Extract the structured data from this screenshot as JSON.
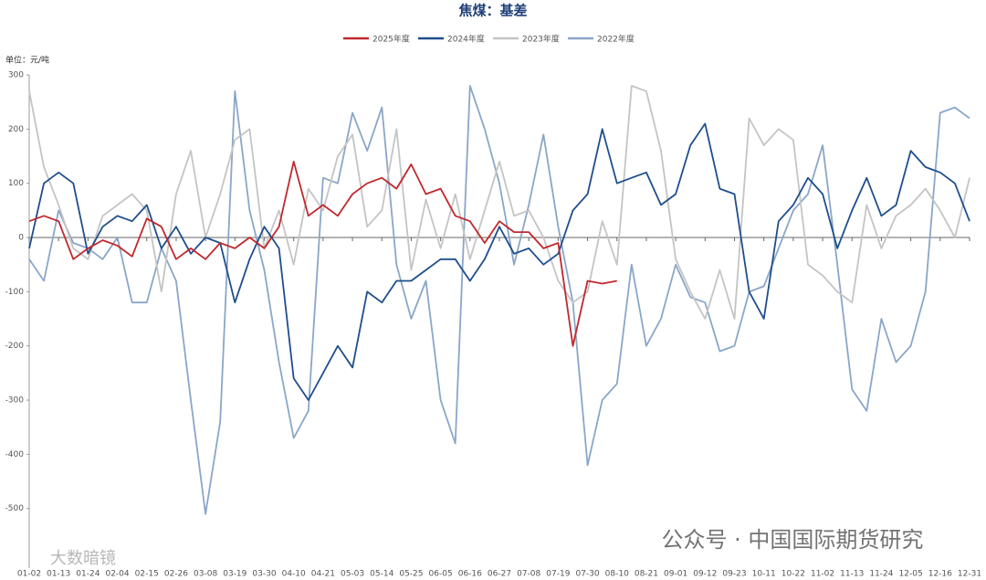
{
  "chart_data": {
    "type": "line",
    "title": "焦煤：基差",
    "y_label": "单位：元/吨",
    "watermark": "公众号 · 中国国际期货研究",
    "watermark2": "大数暗镜",
    "categories": [
      "01-02",
      null,
      "01-13",
      null,
      "01-24",
      null,
      "02-04",
      null,
      "02-15",
      null,
      "02-26",
      null,
      "03-08",
      null,
      "03-19",
      null,
      "03-30",
      null,
      "04-10",
      null,
      "04-21",
      null,
      "05-03",
      null,
      "05-14",
      null,
      "05-25",
      null,
      "06-05",
      null,
      "06-16",
      null,
      "06-27",
      null,
      "07-08",
      null,
      "07-19",
      null,
      "07-30",
      null,
      "08-10",
      null,
      "08-21",
      null,
      "09-01",
      null,
      "09-12",
      null,
      "09-23",
      null,
      "10-11",
      null,
      "10-22",
      null,
      "11-02",
      null,
      "11-13",
      null,
      "11-24",
      null,
      "12-05",
      null,
      "12-16",
      null,
      "12-31"
    ],
    "series": [
      {
        "name": "2025年度",
        "color": "#c0282d",
        "values": [
          30,
          40,
          30,
          -40,
          -20,
          -5,
          -15,
          -35,
          35,
          20,
          -40,
          -20,
          -40,
          -10,
          -20,
          0,
          -20,
          20,
          140,
          40,
          60,
          40,
          80,
          100,
          110,
          90,
          135,
          80,
          90,
          40,
          30,
          -10,
          30,
          10,
          10,
          -20,
          -10,
          -200,
          -80,
          -85,
          -80,
          null,
          null,
          null,
          null,
          null,
          null,
          null,
          null,
          null,
          null,
          null,
          null,
          null,
          null,
          null,
          null,
          null,
          null,
          null,
          null,
          null,
          null,
          null,
          null
        ]
      },
      {
        "name": "2024年度",
        "color": "#1f4e8c",
        "values": [
          -20,
          100,
          120,
          100,
          -30,
          20,
          40,
          30,
          60,
          -20,
          20,
          -30,
          0,
          -10,
          -120,
          -40,
          20,
          -20,
          -260,
          -300,
          -250,
          -200,
          -240,
          -100,
          -120,
          -80,
          -80,
          -60,
          -40,
          -40,
          -80,
          -40,
          20,
          -30,
          -20,
          -50,
          -30,
          50,
          80,
          200,
          100,
          110,
          120,
          60,
          80,
          170,
          210,
          90,
          80,
          -100,
          -150,
          30,
          60,
          110,
          80,
          -20,
          50,
          110,
          40,
          60,
          160,
          130,
          120,
          100,
          30
        ]
      },
      {
        "name": "2023年度",
        "color": "#c4c4c4",
        "values": [
          270,
          130,
          60,
          -20,
          -40,
          40,
          60,
          80,
          50,
          -100,
          80,
          160,
          0,
          80,
          180,
          200,
          -20,
          50,
          -50,
          90,
          50,
          150,
          190,
          20,
          50,
          200,
          -60,
          70,
          -20,
          80,
          -40,
          50,
          140,
          40,
          50,
          0,
          -80,
          -120,
          -100,
          30,
          -50,
          280,
          270,
          160,
          -40,
          -100,
          -150,
          -60,
          -150,
          220,
          170,
          200,
          180,
          -50,
          -70,
          -100,
          -120,
          60,
          -20,
          40,
          60,
          90,
          50,
          0,
          110
        ]
      },
      {
        "name": "2022年度",
        "color": "#8aa6c8",
        "values": [
          -40,
          -80,
          50,
          -10,
          -20,
          -40,
          0,
          -120,
          -120,
          -20,
          -80,
          -300,
          -510,
          -340,
          270,
          50,
          -60,
          -230,
          -370,
          -320,
          110,
          100,
          230,
          160,
          240,
          -50,
          -150,
          -80,
          -300,
          -380,
          280,
          200,
          100,
          -50,
          60,
          190,
          20,
          -120,
          -420,
          -300,
          -270,
          -50,
          -200,
          -150,
          -50,
          -110,
          -120,
          -210,
          -200,
          -100,
          -90,
          -20,
          50,
          80,
          170,
          -50,
          -280,
          -320,
          -150,
          -230,
          -200,
          -100,
          230,
          240,
          220
        ]
      }
    ],
    "ylim": [
      -610,
      300
    ],
    "yticks": [
      -500,
      -400,
      -300,
      -200,
      -100,
      0,
      100,
      200,
      300
    ],
    "legend": "top"
  }
}
